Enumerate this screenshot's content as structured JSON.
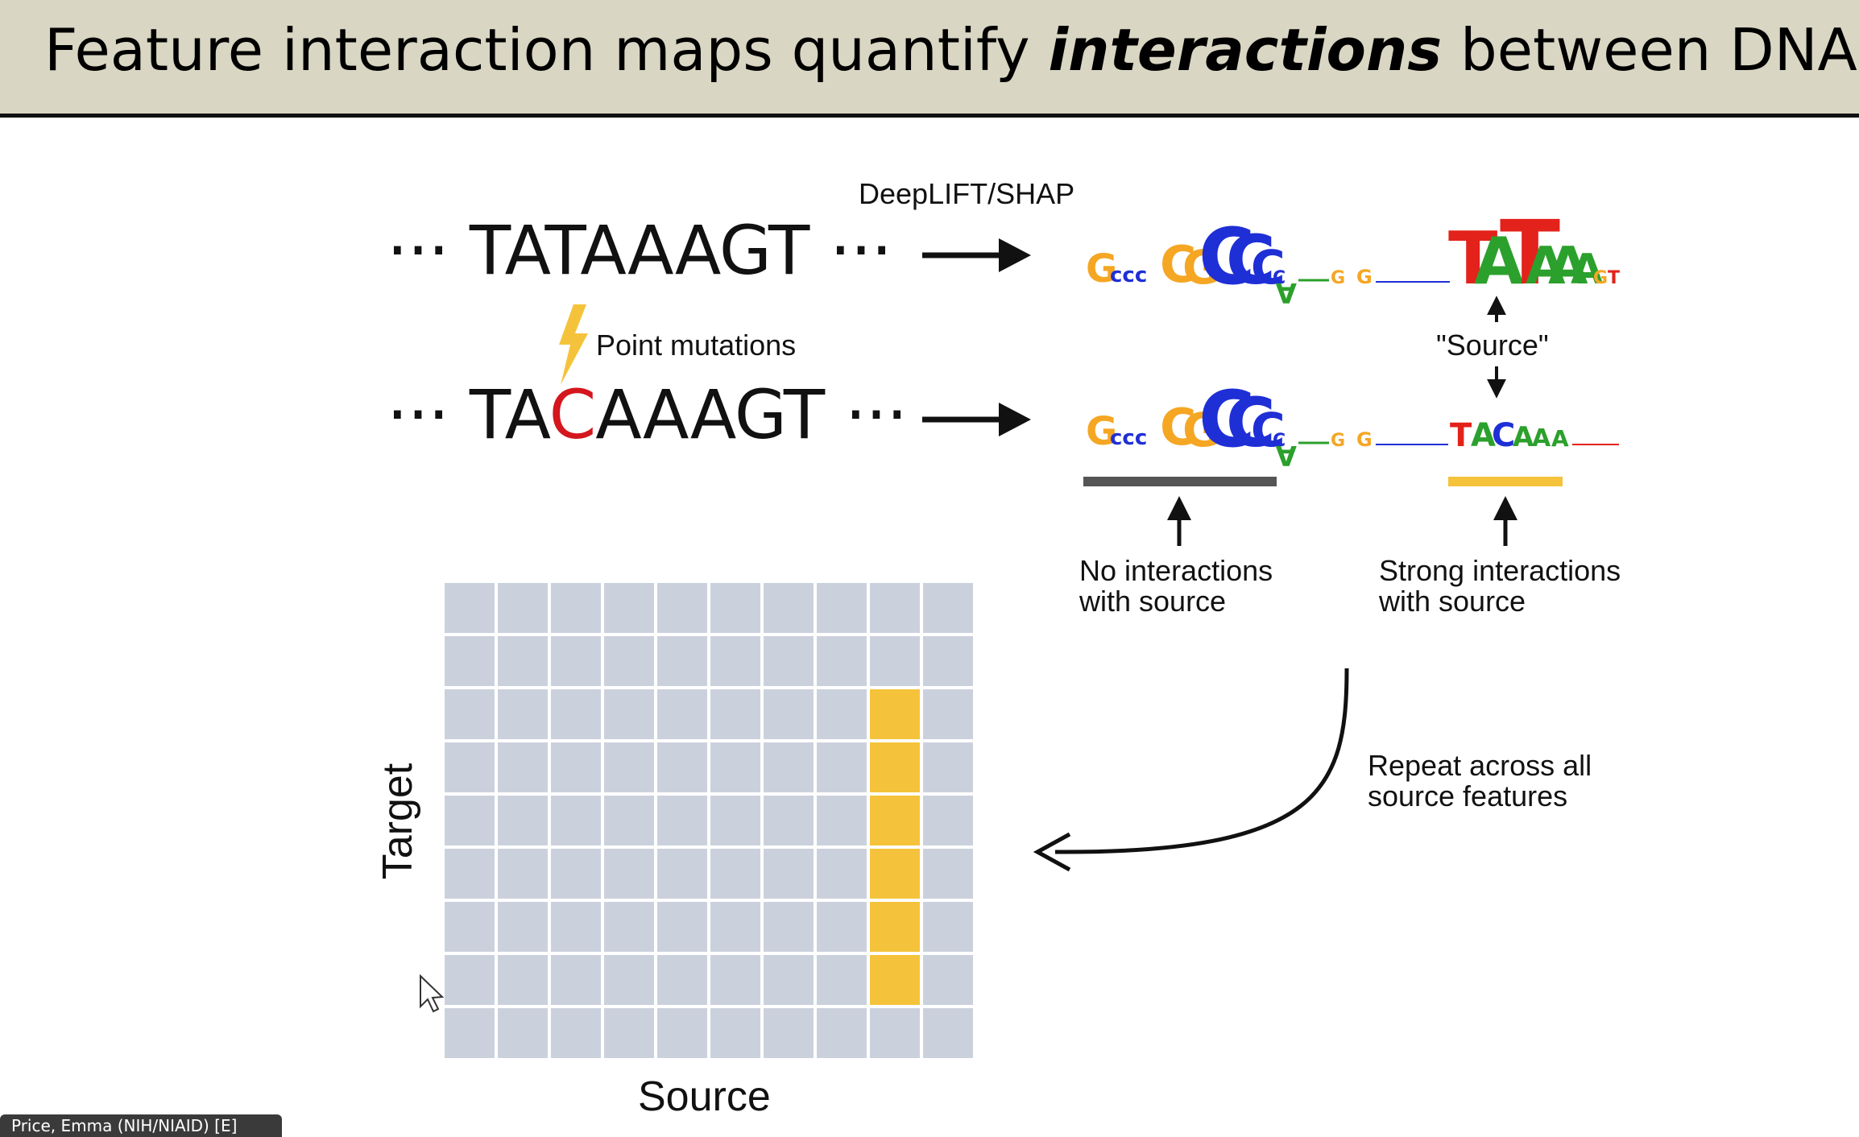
{
  "slide": {
    "title_prefix": "Feature interaction maps quantify ",
    "title_emphasis": "interactions",
    "title_suffix": " between DNA"
  },
  "sequences": {
    "original": {
      "dots_left": "···",
      "seq": "TATAAAGT",
      "dots_right": "···"
    },
    "mutated": {
      "dots_left": "···",
      "seq_a": "TA",
      "seq_mut": "C",
      "seq_b": "AAAGT",
      "dots_right": "···"
    }
  },
  "labels": {
    "method": "DeepLIFT/SHAP",
    "point_mutations": "Point mutations",
    "source_quote": "\"Source\"",
    "no_interactions_1": "No interactions",
    "no_interactions_2": "with source",
    "strong_interactions_1": "Strong interactions",
    "strong_interactions_2": "with source",
    "repeat_1": "Repeat across all",
    "repeat_2": "source features"
  },
  "heatmap": {
    "xlabel": "Source",
    "ylabel": "Target",
    "rows": 9,
    "cols": 10,
    "highlight_col": 8,
    "highlight_rows": [
      2,
      3,
      4,
      5,
      6,
      7
    ],
    "cell_color": "#cbd1dc",
    "highlight_color": "#f5c33b"
  },
  "colors": {
    "A": "#2ca02c",
    "C": "#1f2fd6",
    "G": "#f5a623",
    "T": "#e3221b",
    "mutation": "#d4161d",
    "bar_none": "#555555",
    "bar_strong": "#f5c33b"
  },
  "bottom_chip": {
    "text": "Price, Emma (NIH/NIAID) [E]"
  }
}
